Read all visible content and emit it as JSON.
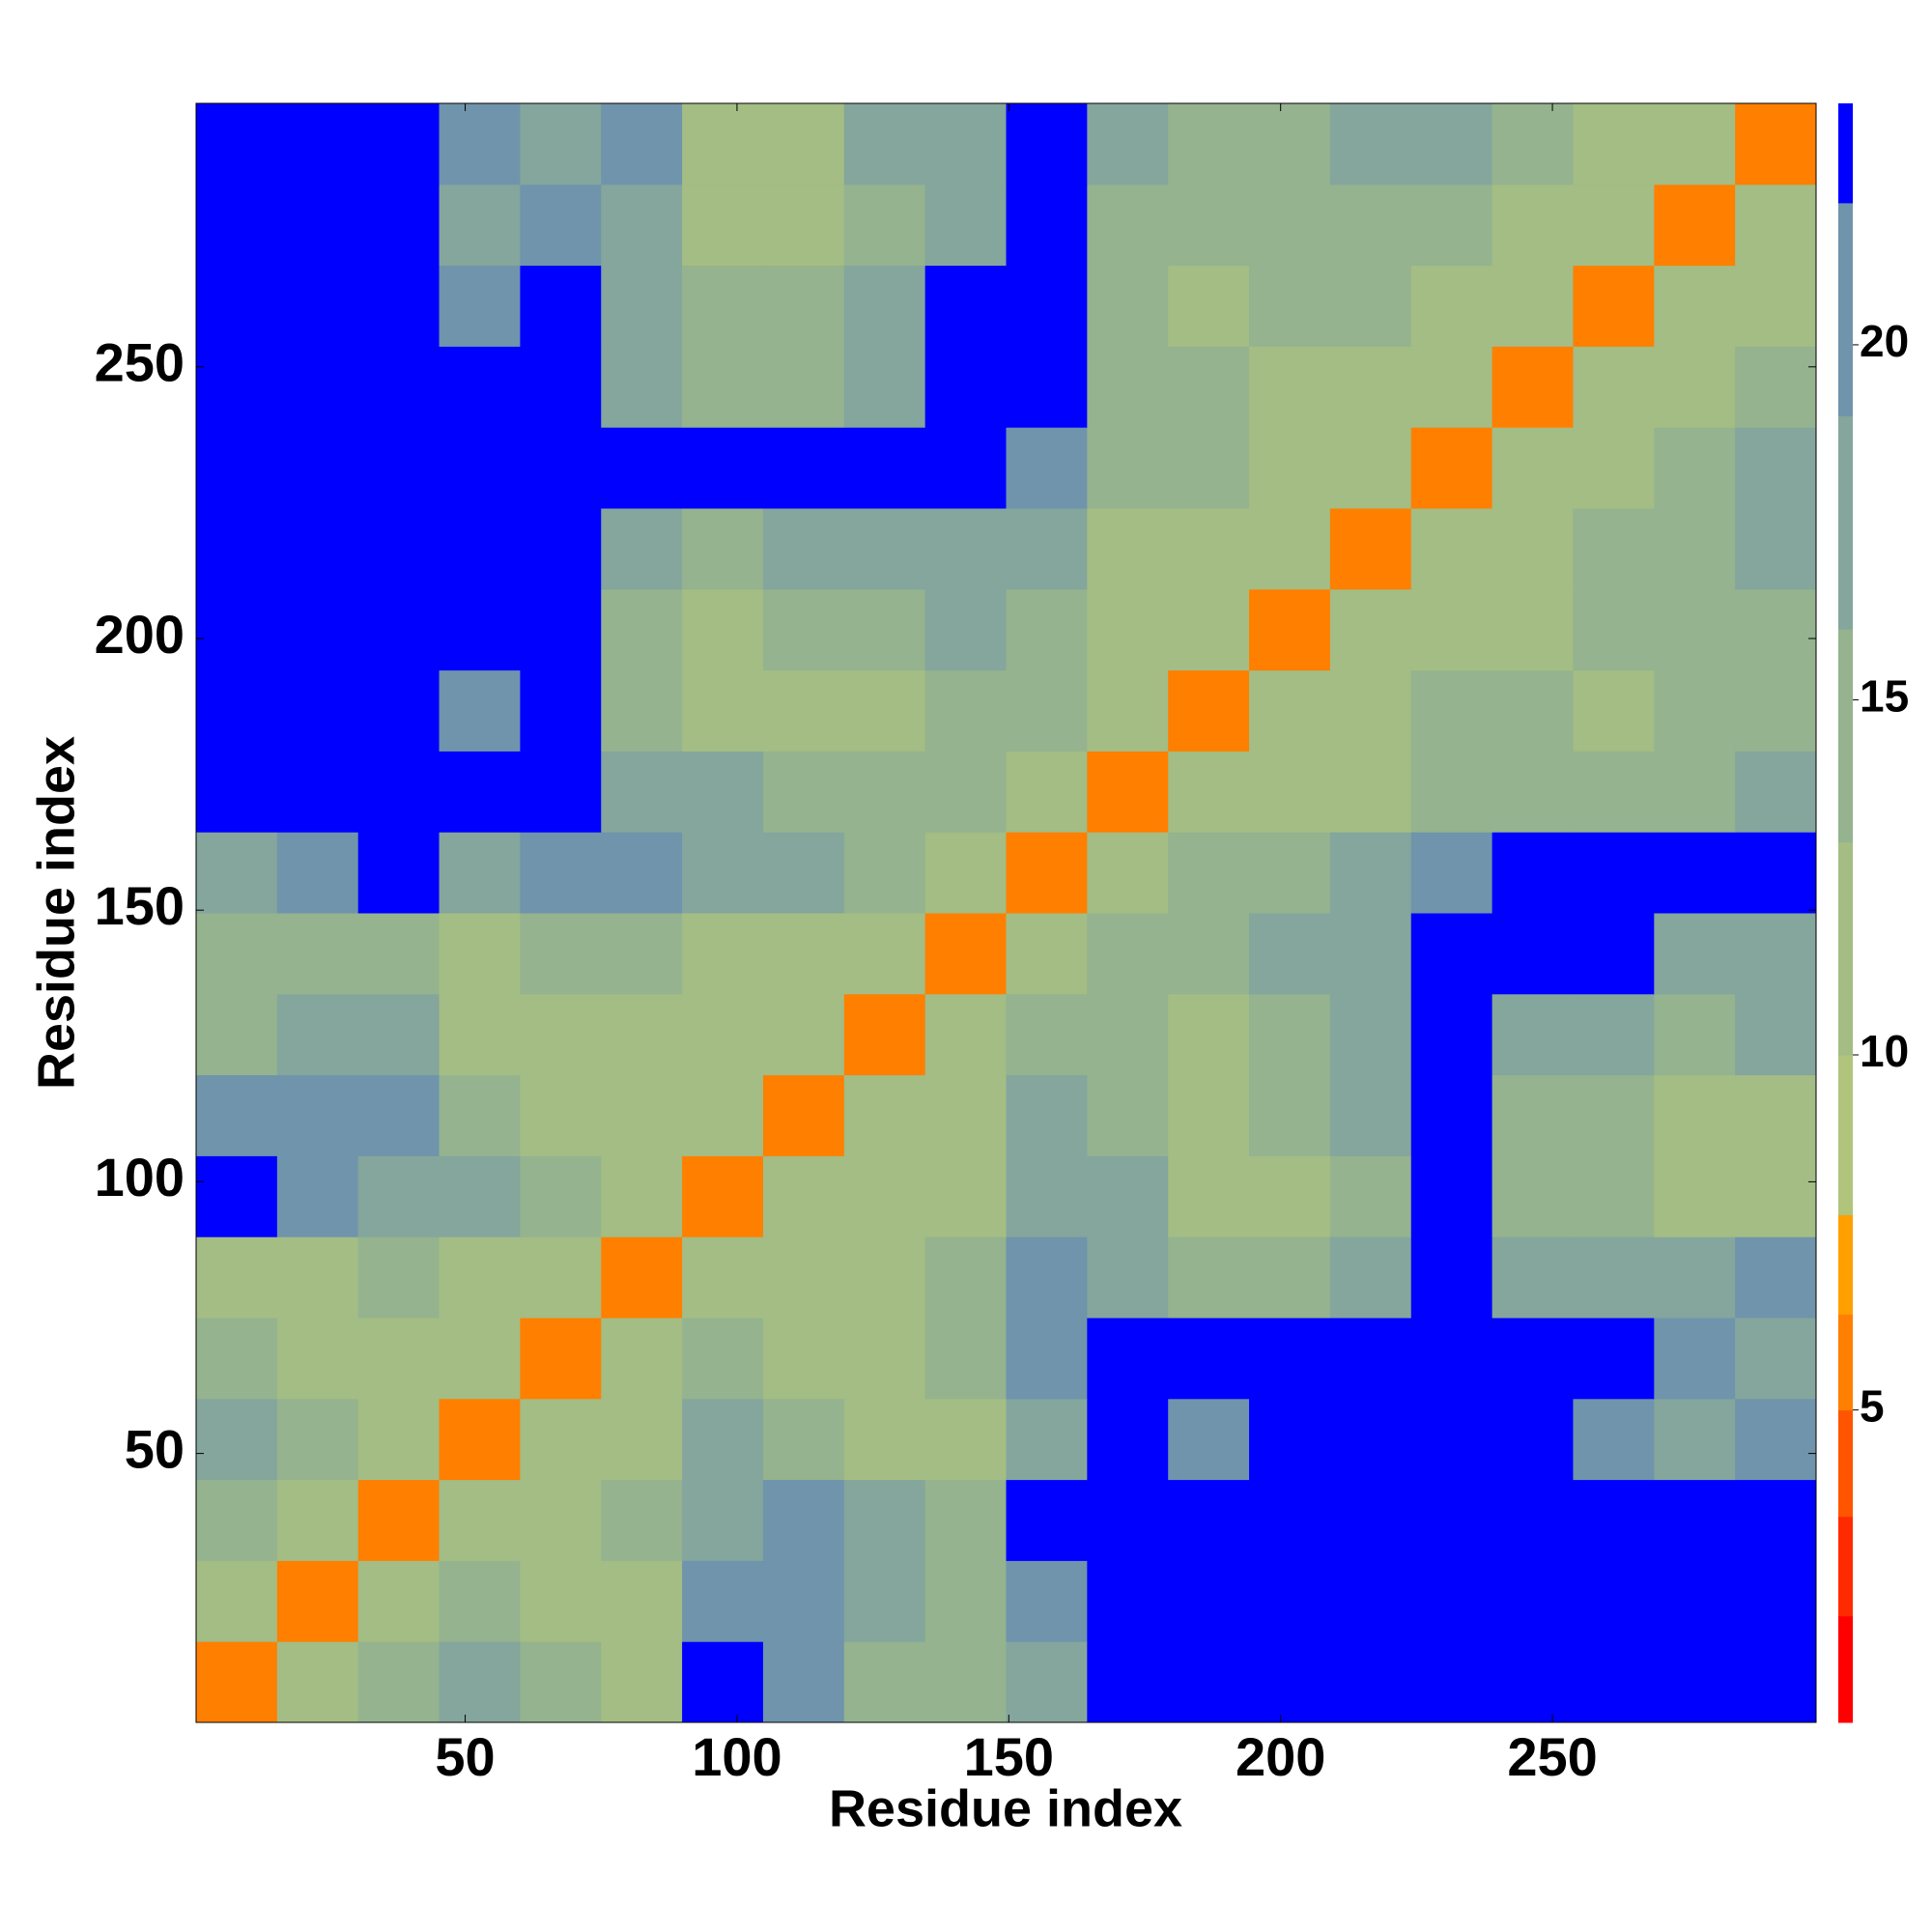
{
  "chart_data": {
    "type": "heatmap",
    "xlabel": "Residue index",
    "ylabel": "Residue index",
    "bins": [
      0.5,
      15.4,
      30.3,
      45.2,
      60.1,
      75,
      89.9,
      104.8,
      119.7,
      134.6,
      149.5,
      164.4,
      179.3,
      194.2,
      209.1,
      224,
      238.9,
      253.8,
      268.7,
      283.6,
      298.5
    ],
    "xlim": [
      0.5,
      298.5
    ],
    "ylim": [
      0.5,
      298.5
    ],
    "xticks": [
      50,
      100,
      150,
      200,
      250
    ],
    "yticks": [
      50,
      100,
      150,
      200,
      250
    ],
    "z": [
      [
        5,
        11,
        13,
        17,
        13,
        12,
        23,
        21,
        14,
        13,
        17,
        23,
        23,
        23,
        23,
        23,
        23,
        23,
        23,
        23
      ],
      [
        11,
        5,
        11,
        15,
        12,
        11,
        21,
        20,
        16,
        15,
        21,
        23,
        23,
        23,
        23,
        23,
        23,
        23,
        23,
        23
      ],
      [
        13,
        11,
        5,
        11,
        12,
        13,
        18,
        20,
        16,
        15,
        23,
        23,
        23,
        23,
        23,
        23,
        23,
        23,
        23,
        23
      ],
      [
        17,
        15,
        11,
        5,
        10,
        12,
        16,
        14,
        12,
        12,
        18,
        23,
        19,
        23,
        23,
        23,
        23,
        21,
        17,
        19
      ],
      [
        13,
        12,
        12,
        10,
        5,
        10,
        14,
        12,
        12,
        14,
        20,
        23,
        23,
        23,
        23,
        23,
        23,
        23,
        19,
        18
      ],
      [
        12,
        11,
        13,
        12,
        10,
        5,
        10,
        12,
        12,
        13,
        20,
        17,
        14,
        13,
        16,
        23,
        18,
        16,
        18,
        20
      ],
      [
        23,
        21,
        18,
        16,
        14,
        10,
        5,
        10,
        11,
        12,
        18,
        17,
        11,
        12,
        15,
        23,
        14,
        13,
        12,
        12
      ],
      [
        21,
        20,
        20,
        14,
        12,
        12,
        10,
        5,
        10,
        11,
        16,
        14,
        12,
        14,
        17,
        23,
        15,
        13,
        12,
        12
      ],
      [
        14,
        16,
        16,
        12,
        12,
        12,
        11,
        10,
        5,
        10,
        13,
        13,
        11,
        13,
        16,
        23,
        18,
        16,
        15,
        16
      ],
      [
        13,
        15,
        15,
        12,
        14,
        13,
        12,
        11,
        10,
        5,
        10,
        13,
        13,
        17,
        18,
        23,
        23,
        23,
        17,
        18
      ],
      [
        17,
        21,
        23,
        18,
        20,
        20,
        18,
        16,
        13,
        10,
        5,
        10,
        15,
        14,
        18,
        20,
        23,
        23,
        23,
        23
      ],
      [
        23,
        23,
        23,
        23,
        23,
        17,
        17,
        14,
        13,
        13,
        10,
        5,
        10,
        11,
        12,
        14,
        14,
        13,
        15,
        16
      ],
      [
        23,
        23,
        23,
        19,
        23,
        14,
        11,
        12,
        11,
        13,
        15,
        10,
        5,
        10,
        12,
        13,
        14,
        12,
        13,
        14
      ],
      [
        23,
        23,
        23,
        23,
        23,
        13,
        12,
        14,
        13,
        17,
        14,
        11,
        10,
        5,
        10,
        11,
        12,
        14,
        13,
        15
      ],
      [
        23,
        23,
        23,
        23,
        23,
        16,
        15,
        17,
        16,
        18,
        18,
        12,
        12,
        10,
        5,
        10,
        12,
        14,
        15,
        16
      ],
      [
        23,
        23,
        23,
        23,
        23,
        23,
        23,
        23,
        23,
        23,
        20,
        14,
        13,
        11,
        10,
        5,
        10,
        11,
        15,
        17
      ],
      [
        23,
        23,
        23,
        23,
        23,
        18,
        14,
        15,
        18,
        23,
        23,
        14,
        14,
        12,
        12,
        10,
        5,
        10,
        11,
        13
      ],
      [
        23,
        23,
        23,
        21,
        23,
        16,
        13,
        13,
        16,
        23,
        23,
        13,
        12,
        14,
        14,
        11,
        10,
        5,
        10,
        11
      ],
      [
        23,
        23,
        23,
        17,
        19,
        18,
        12,
        12,
        15,
        17,
        23,
        15,
        13,
        13,
        15,
        15,
        11,
        10,
        5,
        10
      ],
      [
        23,
        23,
        23,
        19,
        18,
        20,
        12,
        12,
        16,
        18,
        23,
        16,
        14,
        15,
        16,
        17,
        13,
        11,
        10,
        5
      ]
    ],
    "colorbar": {
      "levels": [
        0.6,
        2.1,
        3.5,
        5,
        6.35,
        7.75,
        10,
        13,
        16,
        19,
        22,
        23.4
      ],
      "colors": [
        "#ff0000",
        "#ff2a00",
        "#ff5500",
        "#ff7f00",
        "#ff9f00",
        "#b0c47c",
        "#a3bd84",
        "#94b38e",
        "#84a69c",
        "#6f94ac",
        "#0000ff"
      ],
      "ticks": [
        5,
        10,
        15,
        20
      ]
    }
  }
}
